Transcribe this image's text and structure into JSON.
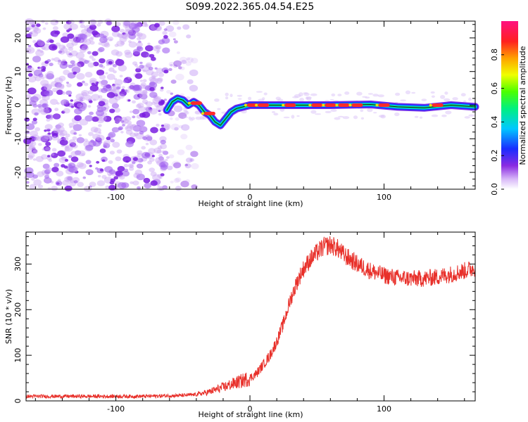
{
  "title": "S099.2022.365.04.54.E25",
  "colors": {
    "noise": "#8a2be2",
    "snr_line": "#e8302a",
    "axis": "#000000",
    "background": "#ffffff"
  },
  "chart_data": [
    {
      "type": "heatmap",
      "title": "S099.2022.365.04.54.E25",
      "xlabel": "Height of straight line (km)",
      "ylabel": "Frequency (Hz)",
      "xlim": [
        -167,
        168
      ],
      "ylim": [
        -25,
        25
      ],
      "xticks": [
        -100,
        0,
        100
      ],
      "yticks": [
        -20,
        -10,
        0,
        10,
        20
      ],
      "noise_region_x": [
        -167,
        -62
      ],
      "signal_trace": {
        "x": [
          -62,
          -58,
          -54,
          -50,
          -46,
          -42,
          -38,
          -34,
          -30,
          -26,
          -22,
          -18,
          -14,
          -10,
          -5,
          0,
          10,
          30,
          60,
          90,
          110,
          130,
          150,
          168
        ],
        "y": [
          -1.5,
          1,
          2,
          1.5,
          0,
          1,
          0,
          -2,
          -3,
          -5,
          -6,
          -4,
          -2,
          -1,
          -0.5,
          0,
          0,
          0,
          0,
          0.2,
          -0.5,
          -0.8,
          0,
          -0.5
        ]
      },
      "colorbar": {
        "label": "Normalized spectral amplitude",
        "range": [
          0.0,
          1.0
        ],
        "ticks": [
          0.0,
          0.2,
          0.4,
          0.6,
          0.8
        ],
        "tick_labels": [
          "0.0",
          "0.2",
          "0.4",
          "0.6",
          "0.8"
        ]
      }
    },
    {
      "type": "line",
      "xlabel": "Height of straight line (km)",
      "ylabel": "SNR (10 * v/v)",
      "xlim": [
        -167,
        168
      ],
      "ylim": [
        0,
        370
      ],
      "xticks": [
        -100,
        0,
        100
      ],
      "yticks": [
        0,
        100,
        200,
        300
      ],
      "series": [
        {
          "name": "SNR",
          "x": [
            -167,
            -120,
            -80,
            -50,
            -40,
            -30,
            -20,
            -10,
            0,
            5,
            10,
            15,
            20,
            25,
            30,
            35,
            40,
            45,
            50,
            55,
            60,
            65,
            70,
            75,
            80,
            90,
            100,
            110,
            120,
            130,
            140,
            150,
            160,
            168
          ],
          "y": [
            10,
            10,
            10,
            12,
            14,
            20,
            30,
            40,
            50,
            60,
            80,
            100,
            130,
            170,
            220,
            260,
            290,
            310,
            325,
            338,
            342,
            335,
            320,
            310,
            300,
            285,
            275,
            270,
            268,
            268,
            272,
            278,
            285,
            292
          ]
        }
      ]
    }
  ]
}
